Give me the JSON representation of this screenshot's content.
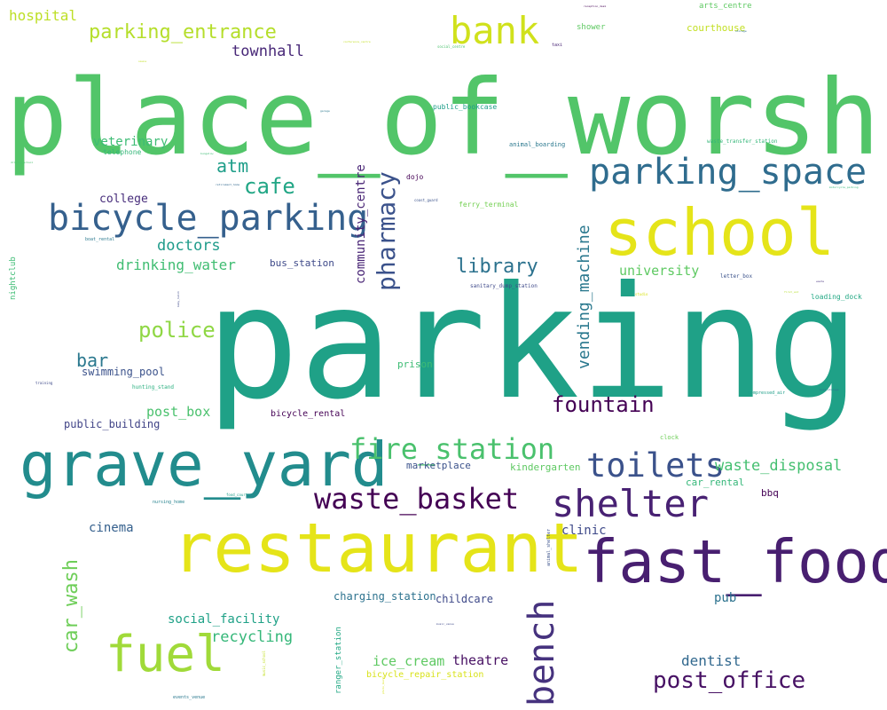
{
  "words": [
    {
      "text": "place_of_worship",
      "color": "#52c569"
    },
    {
      "text": "parking",
      "color": "#1fa187"
    },
    {
      "text": "school",
      "color": "#e5e419"
    },
    {
      "text": "restaurant",
      "color": "#e5e419"
    },
    {
      "text": "fast_food",
      "color": "#481f70"
    },
    {
      "text": "grave_yard",
      "color": "#228c8d"
    },
    {
      "text": "bicycle_parking",
      "color": "#35608d"
    },
    {
      "text": "parking_space",
      "color": "#2f6c8e"
    },
    {
      "text": "bank",
      "color": "#d0e11c"
    },
    {
      "text": "fuel",
      "color": "#a0da39"
    },
    {
      "text": "shelter",
      "color": "#482173"
    },
    {
      "text": "toilets",
      "color": "#3b528b"
    },
    {
      "text": "waste_basket",
      "color": "#440154"
    },
    {
      "text": "fire_station",
      "color": "#4ac16d"
    },
    {
      "text": "bench",
      "color": "#46327e"
    },
    {
      "text": "post_office",
      "color": "#471164"
    },
    {
      "text": "parking_entrance",
      "color": "#b5de2b"
    },
    {
      "text": "fountain",
      "color": "#440154"
    },
    {
      "text": "police",
      "color": "#8fd744"
    },
    {
      "text": "pharmacy",
      "color": "#3b528b"
    },
    {
      "text": "library",
      "color": "#2c728e"
    },
    {
      "text": "cafe",
      "color": "#21a685"
    },
    {
      "text": "atm",
      "color": "#1f9e89"
    },
    {
      "text": "vending_machine",
      "color": "#2a788e"
    },
    {
      "text": "car_wash",
      "color": "#6ece58"
    },
    {
      "text": "waste_disposal",
      "color": "#44bf70"
    },
    {
      "text": "townhall",
      "color": "#482878"
    },
    {
      "text": "doctors",
      "color": "#1e9b8a"
    },
    {
      "text": "drinking_water",
      "color": "#40bd72"
    },
    {
      "text": "recycling",
      "color": "#35b779"
    },
    {
      "text": "hospital",
      "color": "#bddf26"
    },
    {
      "text": "bar",
      "color": "#2a788e"
    },
    {
      "text": "post_box",
      "color": "#4ac16d"
    },
    {
      "text": "veterinary",
      "color": "#3dbc74"
    },
    {
      "text": "university",
      "color": "#5ec962"
    },
    {
      "text": "social_facility",
      "color": "#1fa187"
    },
    {
      "text": "ice_cream",
      "color": "#5ec962"
    },
    {
      "text": "theatre",
      "color": "#471063"
    },
    {
      "text": "dentist",
      "color": "#31688e"
    },
    {
      "text": "community_centre",
      "color": "#482475"
    },
    {
      "text": "cinema",
      "color": "#35608d"
    },
    {
      "text": "clinic",
      "color": "#3e4989"
    },
    {
      "text": "pub",
      "color": "#2c728e"
    },
    {
      "text": "college",
      "color": "#472d7b"
    },
    {
      "text": "swimming_pool",
      "color": "#3b528b"
    },
    {
      "text": "public_building",
      "color": "#414487"
    },
    {
      "text": "childcare",
      "color": "#3e4989"
    },
    {
      "text": "charging_station",
      "color": "#2c728e"
    },
    {
      "text": "bus_station",
      "color": "#3e4989"
    },
    {
      "text": "prison",
      "color": "#3dbc74"
    },
    {
      "text": "marketplace",
      "color": "#3b528b"
    },
    {
      "text": "kindergarten",
      "color": "#5ec962"
    },
    {
      "text": "car_rental",
      "color": "#35b779"
    },
    {
      "text": "bbq",
      "color": "#440154"
    },
    {
      "text": "bicycle_rental",
      "color": "#440154"
    },
    {
      "text": "courthouse",
      "color": "#c2df23"
    },
    {
      "text": "arts_centre",
      "color": "#5ec962"
    },
    {
      "text": "shower",
      "color": "#5ec962"
    },
    {
      "text": "bicycle_repair_station",
      "color": "#d8e219"
    },
    {
      "text": "ranger_station",
      "color": "#22a884"
    },
    {
      "text": "nightclub",
      "color": "#3dbc74"
    },
    {
      "text": "telephone",
      "color": "#35b779"
    },
    {
      "text": "dojo",
      "color": "#440154"
    },
    {
      "text": "ferry_terminal",
      "color": "#75d054"
    },
    {
      "text": "public_bookcase",
      "color": "#1f9e89"
    },
    {
      "text": "animal_boarding",
      "color": "#2a788e"
    },
    {
      "text": "waste_transfer_station",
      "color": "#35b779"
    },
    {
      "text": "sanitary_dump_station",
      "color": "#3e4989"
    },
    {
      "text": "letter_box",
      "color": "#3b528b"
    },
    {
      "text": "loading_dock",
      "color": "#22a884"
    },
    {
      "text": "hunting_stand",
      "color": "#29af7f"
    },
    {
      "text": "compressed_air",
      "color": "#1f9e89"
    },
    {
      "text": "clock",
      "color": "#6ece58"
    },
    {
      "text": "nursing_home",
      "color": "#26828e"
    },
    {
      "text": "food_court",
      "color": "#1f9e89"
    },
    {
      "text": "animal_shelter",
      "color": "#3b528b"
    },
    {
      "text": "events_venue",
      "color": "#2a788e"
    },
    {
      "text": "training",
      "color": "#3e4989"
    },
    {
      "text": "boat_rental",
      "color": "#2a788e"
    },
    {
      "text": "taxi",
      "color": "#482475"
    },
    {
      "text": "social_centre",
      "color": "#4ac16d"
    },
    {
      "text": "coast_guard",
      "color": "#3b528b"
    },
    {
      "text": "retirement_home",
      "color": "#31688e"
    },
    {
      "text": "bungalow",
      "color": "#3dbc74"
    },
    {
      "text": "studio",
      "color": "#d8e219"
    },
    {
      "text": "first_aid",
      "color": "#b5de2b"
    },
    {
      "text": "music_school",
      "color": "#c2df23"
    },
    {
      "text": "music_venue",
      "color": "#3e4989"
    },
    {
      "text": "driving_school",
      "color": "#4ac16d"
    },
    {
      "text": "reception_desk",
      "color": "#440154"
    },
    {
      "text": "conference_centre",
      "color": "#c2df23"
    },
    {
      "text": "motorcycle_parking",
      "color": "#35b779"
    },
    {
      "text": "storage",
      "color": "#2c728e"
    },
    {
      "text": "baby_hatch",
      "color": "#3e4989"
    },
    {
      "text": "garage",
      "color": "#2a788e"
    },
    {
      "text": "boat_storage",
      "color": "#2c728e"
    },
    {
      "text": "waste",
      "color": "#46327e"
    },
    {
      "text": "sauna",
      "color": "#c2df23"
    },
    {
      "text": "photo_booth",
      "color": "#d8e219"
    }
  ]
}
